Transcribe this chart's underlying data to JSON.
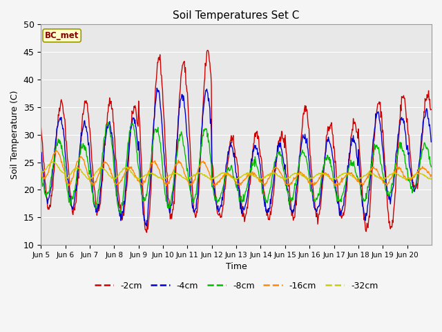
{
  "title": "Soil Temperatures Set C",
  "xlabel": "Time",
  "ylabel": "Soil Temperature (C)",
  "ylim": [
    10,
    50
  ],
  "annotation": "BC_met",
  "bg_color": "#e8e8e8",
  "grid_color": "white",
  "series_colors": {
    "-2cm": "#cc0000",
    "-4cm": "#0000cc",
    "-8cm": "#00bb00",
    "-16cm": "#ff8800",
    "-32cm": "#cccc00"
  },
  "xtick_labels": [
    "Jun 5",
    "Jun 6",
    "Jun 7",
    "Jun 8",
    "Jun 9",
    "Jun 10",
    "Jun 11",
    "Jun 12",
    "Jun 13",
    "Jun 14",
    "Jun 15",
    "Jun 16",
    "Jun 17",
    "Jun 18",
    "Jun 19",
    "Jun 20"
  ]
}
